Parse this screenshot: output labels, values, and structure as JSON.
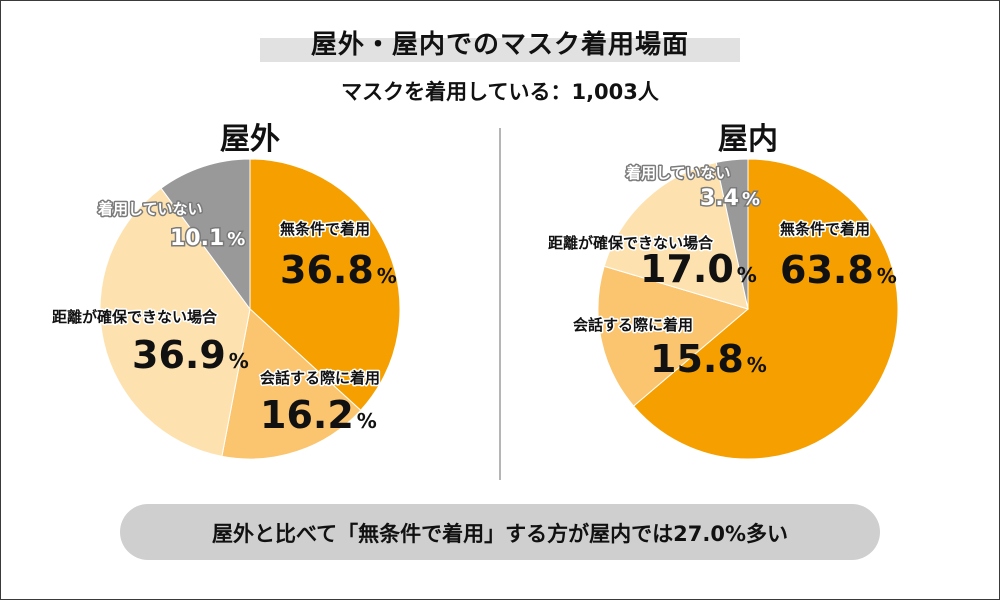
{
  "title": "屋外・屋内でのマスク着用場面",
  "subtitle": "マスクを着用している：1,003人",
  "footer": "屋外と比べて「無条件で着用」する方が屋内では27.0%多い",
  "colors": {
    "unconditional": "#f5a000",
    "conversation": "#fbc46e",
    "distance": "#fde2b0",
    "not_wearing": "#999999"
  },
  "chart_data": [
    {
      "type": "pie",
      "title": "屋外",
      "slices": [
        {
          "label": "無条件で着用",
          "value": 36.8,
          "color_key": "unconditional"
        },
        {
          "label": "会話する際に着用",
          "value": 16.2,
          "color_key": "conversation"
        },
        {
          "label": "距離が確保できない場合",
          "value": 36.9,
          "color_key": "distance"
        },
        {
          "label": "着用していない",
          "value": 10.1,
          "color_key": "not_wearing"
        }
      ],
      "unit": "%"
    },
    {
      "type": "pie",
      "title": "屋内",
      "slices": [
        {
          "label": "無条件で着用",
          "value": 63.8,
          "color_key": "unconditional"
        },
        {
          "label": "会話する際に着用",
          "value": 15.8,
          "color_key": "conversation"
        },
        {
          "label": "距離が確保できない場合",
          "value": 17.0,
          "color_key": "distance"
        },
        {
          "label": "着用していない",
          "value": 3.4,
          "color_key": "not_wearing"
        }
      ],
      "unit": "%"
    }
  ]
}
